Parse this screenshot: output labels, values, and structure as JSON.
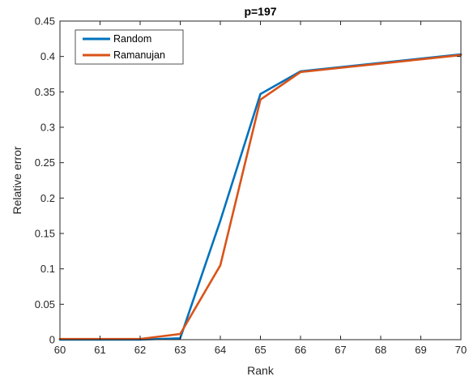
{
  "chart_data": {
    "type": "line",
    "title": "p=197",
    "xlabel": "Rank",
    "ylabel": "Relative error",
    "xlim": [
      60,
      70
    ],
    "ylim": [
      0,
      0.45
    ],
    "xticks": [
      "60",
      "61",
      "62",
      "63",
      "64",
      "65",
      "66",
      "67",
      "68",
      "69",
      "70"
    ],
    "yticks": [
      "0",
      "0.05",
      "0.1",
      "0.15",
      "0.2",
      "0.25",
      "0.3",
      "0.35",
      "0.4",
      "0.45"
    ],
    "grid": false,
    "legend_position": "top-left",
    "x": [
      60,
      61,
      62,
      63,
      64,
      65,
      66,
      67,
      68,
      69,
      70
    ],
    "series": [
      {
        "name": "Random",
        "color": "#0072BD",
        "values": [
          0.0,
          0.0,
          0.0,
          0.002,
          0.168,
          0.347,
          0.379,
          0.385,
          0.391,
          0.397,
          0.403
        ]
      },
      {
        "name": "Ramanujan",
        "color": "#D95319",
        "values": [
          0.001,
          0.001,
          0.001,
          0.008,
          0.105,
          0.339,
          0.378,
          0.384,
          0.39,
          0.396,
          0.402
        ]
      }
    ]
  }
}
